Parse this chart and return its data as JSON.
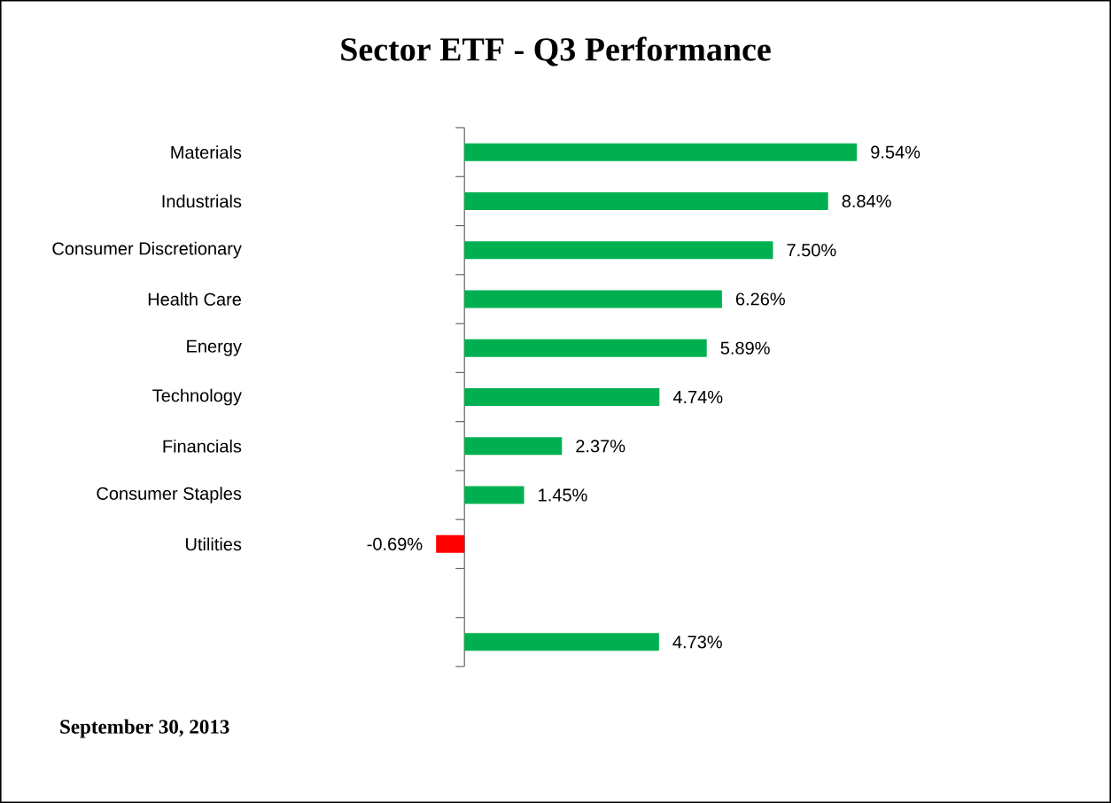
{
  "chart_data": {
    "type": "bar",
    "orientation": "horizontal",
    "title": "Sector ETF - Q3  Performance",
    "categories": [
      "Materials",
      "Industrials",
      "Consumer Discretionary",
      "Health Care",
      "Energy",
      "Technology",
      "Financials",
      "Consumer Staples",
      "Utilities",
      null,
      null
    ],
    "values": [
      9.54,
      8.84,
      7.5,
      6.26,
      5.89,
      4.74,
      2.37,
      1.45,
      -0.69,
      null,
      4.73
    ],
    "colors": [
      "#00b050",
      "#00b050",
      "#00b050",
      "#00b050",
      "#00b050",
      "#00b050",
      "#00b050",
      "#00b050",
      "#ff0000",
      "#00b050",
      "#00b050"
    ],
    "value_labels": [
      "9.54%",
      "8.84%",
      "7.50%",
      "6.26%",
      "5.89%",
      "4.74%",
      "2.37%",
      "1.45%",
      "-0.69%",
      null,
      "4.73%"
    ],
    "annotations": [
      "September 30, 2013"
    ]
  }
}
